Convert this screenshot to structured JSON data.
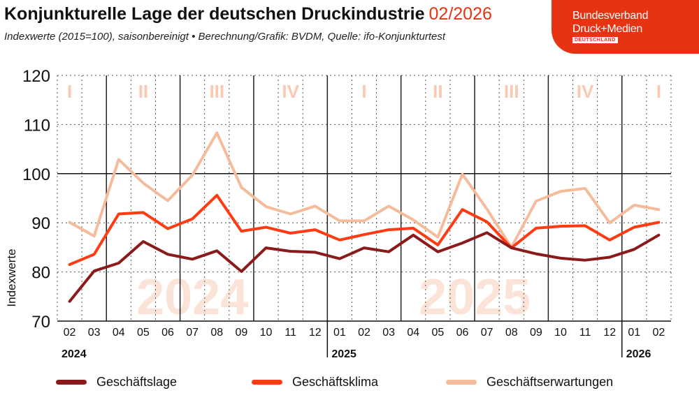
{
  "header": {
    "title": "Konjunkturelle Lage der deutschen Druckindustrie",
    "title_date": "02/2026",
    "subtitle": "Indexwerte (2015=100), saisonbereinigt • Berechnung/Grafik: BVDM, Quelle: ifo-Konjunkturtest"
  },
  "logo": {
    "line1": "Bundesverband",
    "line2": "Druck+Medien",
    "line3": "DEUTSCHLAND"
  },
  "colors": {
    "accent": "#e63312",
    "lage": "#8b1a1a",
    "klima": "#ff3b14",
    "erwartungen": "#f5bc9c",
    "watermark": "#fbe3d7",
    "quarter_label": "#f9c9b2"
  },
  "chart_data": {
    "type": "line",
    "ylabel": "Indexwerte",
    "ylim": [
      70,
      120
    ],
    "yticks": [
      70,
      80,
      90,
      100,
      110,
      120
    ],
    "reference_line": 100,
    "grid": true,
    "legend_position": "bottom",
    "categories": [
      "02",
      "03",
      "04",
      "05",
      "06",
      "07",
      "08",
      "09",
      "10",
      "11",
      "12",
      "01",
      "02",
      "03",
      "04",
      "05",
      "06",
      "07",
      "08",
      "09",
      "10",
      "11",
      "12",
      "01",
      "02"
    ],
    "year_labels": [
      {
        "label": "2024",
        "start_index": 0
      },
      {
        "label": "2025",
        "start_index": 11
      },
      {
        "label": "2026",
        "start_index": 23
      }
    ],
    "quarter_labels": [
      {
        "label": "I",
        "center_index": 0
      },
      {
        "label": "II",
        "center_index": 3
      },
      {
        "label": "III",
        "center_index": 6
      },
      {
        "label": "IV",
        "center_index": 9
      },
      {
        "label": "I",
        "center_index": 12
      },
      {
        "label": "II",
        "center_index": 15
      },
      {
        "label": "III",
        "center_index": 18
      },
      {
        "label": "IV",
        "center_index": 21
      },
      {
        "label": "I",
        "center_index": 24
      }
    ],
    "watermarks": [
      {
        "label": "2024",
        "center_index": 5
      },
      {
        "label": "2025",
        "center_index": 16.5
      }
    ],
    "series": [
      {
        "name": "Geschäftslage",
        "color": "#8b1a1a",
        "values": [
          74.0,
          80.2,
          81.8,
          86.2,
          83.6,
          82.6,
          84.3,
          80.1,
          84.9,
          84.2,
          84.0,
          82.7,
          84.9,
          84.1,
          87.5,
          84.1,
          85.9,
          88.0,
          84.9,
          83.7,
          82.8,
          82.4,
          83.0,
          84.6,
          87.5
        ]
      },
      {
        "name": "Geschäftsklima",
        "color": "#ff3b14",
        "values": [
          81.5,
          83.6,
          91.8,
          92.1,
          88.8,
          90.8,
          95.6,
          88.3,
          89.1,
          87.9,
          88.6,
          86.5,
          87.6,
          88.6,
          88.9,
          85.5,
          92.7,
          90.2,
          84.9,
          88.9,
          89.3,
          89.4,
          86.5,
          89.1,
          90.1
        ]
      },
      {
        "name": "Geschäftserwartungen",
        "color": "#f5bc9c",
        "values": [
          90.1,
          87.3,
          102.9,
          98.1,
          94.5,
          99.7,
          108.3,
          97.2,
          93.3,
          91.8,
          93.4,
          90.4,
          90.4,
          93.4,
          90.6,
          87.1,
          99.9,
          92.8,
          85.0,
          94.4,
          96.4,
          97.0,
          90.0,
          93.6,
          92.7
        ]
      }
    ]
  },
  "legend": {
    "items": [
      {
        "label": "Geschäftslage",
        "color": "#8b1a1a"
      },
      {
        "label": "Geschäftsklima",
        "color": "#ff3b14"
      },
      {
        "label": "Geschäftserwartungen",
        "color": "#f5bc9c"
      }
    ]
  }
}
